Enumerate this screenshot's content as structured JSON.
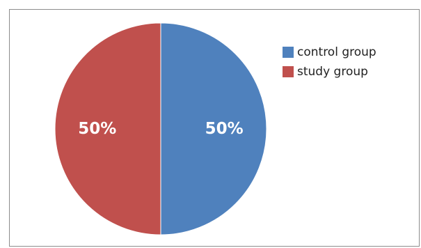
{
  "chart_data": {
    "type": "pie",
    "title": "",
    "slices": [
      {
        "name": "control group",
        "value": 50,
        "label": "50%",
        "color": "#4f81bd"
      },
      {
        "name": "study group",
        "value": 50,
        "label": "50%",
        "color": "#c0504d"
      }
    ],
    "legend": {
      "placement": "top-right",
      "entries": [
        "control group",
        "study group"
      ]
    }
  }
}
